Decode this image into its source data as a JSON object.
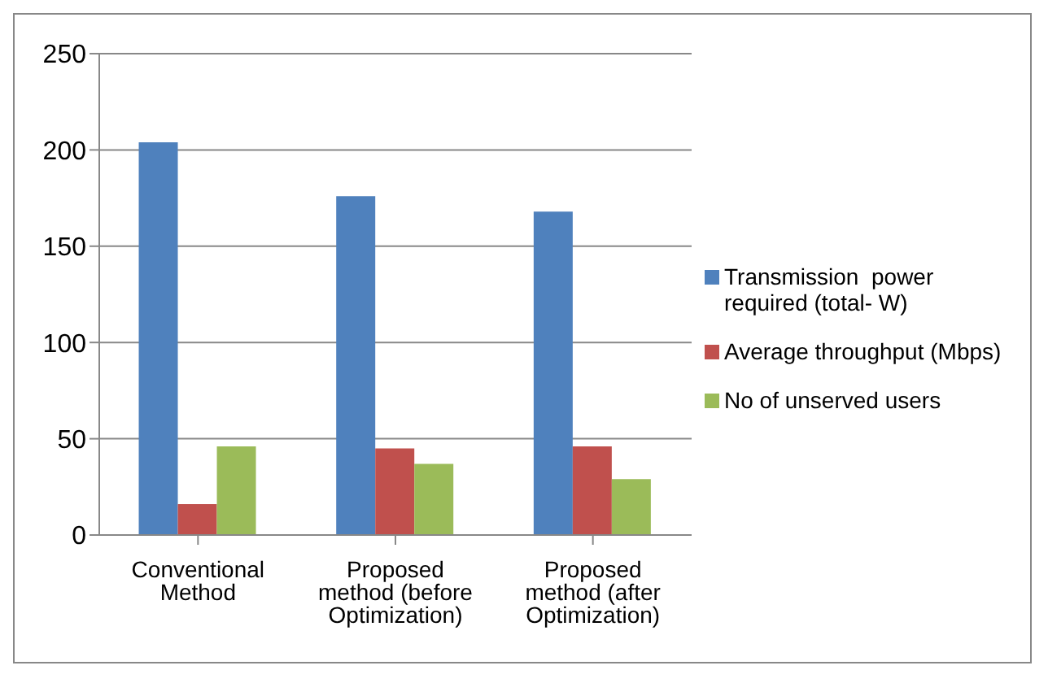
{
  "chart_data": {
    "type": "bar",
    "categories": [
      "Conventional Method",
      "Proposed method (before Optimization)",
      "Proposed method (after Optimization)"
    ],
    "series": [
      {
        "name": "Transmission  power required (total- W)",
        "color": "#4f81bd",
        "values": [
          204,
          176,
          168
        ]
      },
      {
        "name": "Average throughput (Mbps)",
        "color": "#c0504d",
        "values": [
          16,
          45,
          46
        ]
      },
      {
        "name": "No of unserved users",
        "color": "#9bbb59",
        "values": [
          46,
          37,
          29
        ]
      }
    ],
    "ylim": [
      0,
      250
    ],
    "yticks": [
      0,
      50,
      100,
      150,
      200,
      250
    ],
    "grid": "y",
    "legend": "right"
  }
}
